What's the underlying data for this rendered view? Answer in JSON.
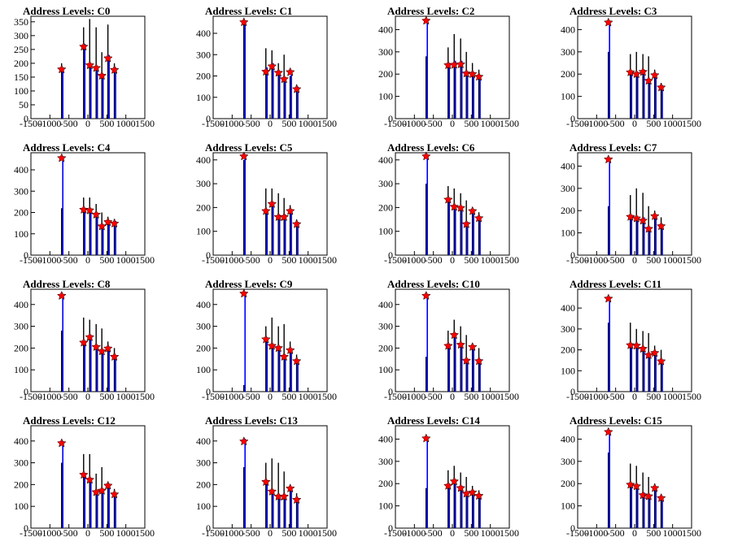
{
  "colors": {
    "black_series": "#000000",
    "blue_series": "#0000ff",
    "marker": "#ff0000",
    "marker_outline": "#000000",
    "axes": "#000000",
    "background": "#ffffff"
  },
  "marker_icon": "red-star",
  "chart_data": [
    {
      "type": "bar",
      "title": "Address Levels: C0",
      "xlim": [
        -1500,
        1500
      ],
      "ylim": [
        0,
        370
      ],
      "xticks": [
        "-1500",
        "-1000",
        "-500",
        "0",
        "500",
        "1000",
        "1500"
      ],
      "yticks": [
        "0",
        "50",
        "100",
        "150",
        "200",
        "250",
        "300",
        "350"
      ],
      "x": [
        -690,
        -110,
        50,
        220,
        370,
        530,
        700
      ],
      "black": [
        200,
        330,
        360,
        330,
        240,
        340,
        200
      ],
      "blue": [
        185,
        270,
        195,
        185,
        160,
        230,
        185
      ],
      "peaks": [
        {
          "x": -690,
          "y": 178
        },
        {
          "x": -110,
          "y": 260
        },
        {
          "x": 50,
          "y": 193
        },
        {
          "x": 220,
          "y": 183
        },
        {
          "x": 370,
          "y": 155
        },
        {
          "x": 530,
          "y": 218
        },
        {
          "x": 700,
          "y": 176
        }
      ]
    },
    {
      "type": "bar",
      "title": "Address Levels: C1",
      "xlim": [
        -1500,
        1500
      ],
      "ylim": [
        0,
        480
      ],
      "xticks": [
        "-1500",
        "-1000",
        "-500",
        "0",
        "500",
        "1000",
        "1500"
      ],
      "yticks": [
        "0",
        "100",
        "200",
        "300",
        "400"
      ],
      "x": [
        -690,
        -110,
        50,
        220,
        370,
        530,
        700
      ],
      "black": [
        450,
        330,
        320,
        260,
        300,
        200,
        160
      ],
      "blue": [
        460,
        240,
        260,
        220,
        190,
        220,
        150
      ],
      "peaks": [
        {
          "x": -690,
          "y": 452
        },
        {
          "x": -110,
          "y": 220
        },
        {
          "x": 50,
          "y": 245
        },
        {
          "x": 220,
          "y": 215
        },
        {
          "x": 370,
          "y": 185
        },
        {
          "x": 530,
          "y": 218
        },
        {
          "x": 700,
          "y": 138
        }
      ]
    },
    {
      "type": "bar",
      "title": "Address Levels: C2",
      "xlim": [
        -1500,
        1500
      ],
      "ylim": [
        0,
        460
      ],
      "xticks": [
        "-1500",
        "-1000",
        "-500",
        "0",
        "500",
        "1000",
        "1500"
      ],
      "yticks": [
        "0",
        "100",
        "200",
        "300",
        "400"
      ],
      "x": [
        -690,
        -110,
        50,
        220,
        370,
        530,
        700
      ],
      "black": [
        280,
        320,
        380,
        360,
        300,
        250,
        220
      ],
      "blue": [
        440,
        250,
        260,
        260,
        200,
        210,
        190
      ],
      "peaks": [
        {
          "x": -690,
          "y": 440
        },
        {
          "x": -110,
          "y": 240
        },
        {
          "x": 50,
          "y": 242
        },
        {
          "x": 220,
          "y": 244
        },
        {
          "x": 370,
          "y": 203
        },
        {
          "x": 530,
          "y": 200
        },
        {
          "x": 700,
          "y": 188
        }
      ]
    },
    {
      "type": "bar",
      "title": "Address Levels: C3",
      "xlim": [
        -1500,
        1500
      ],
      "ylim": [
        0,
        460
      ],
      "xticks": [
        "-1500",
        "-1000",
        "-500",
        "0",
        "500",
        "1000",
        "1500"
      ],
      "yticks": [
        "0",
        "100",
        "200",
        "300",
        "400"
      ],
      "x": [
        -690,
        -110,
        50,
        220,
        370,
        530,
        700
      ],
      "black": [
        300,
        290,
        300,
        290,
        280,
        220,
        160
      ],
      "blue": [
        440,
        210,
        210,
        220,
        170,
        200,
        150
      ],
      "peaks": [
        {
          "x": -690,
          "y": 432
        },
        {
          "x": -110,
          "y": 208
        },
        {
          "x": 50,
          "y": 200
        },
        {
          "x": 220,
          "y": 210
        },
        {
          "x": 370,
          "y": 170
        },
        {
          "x": 530,
          "y": 195
        },
        {
          "x": 700,
          "y": 140
        }
      ]
    },
    {
      "type": "bar",
      "title": "Address Levels: C4",
      "xlim": [
        -1500,
        1500
      ],
      "ylim": [
        0,
        480
      ],
      "xticks": [
        "-1500",
        "-1000",
        "-500",
        "0",
        "500",
        "1000",
        "1500"
      ],
      "yticks": [
        "0",
        "100",
        "200",
        "300",
        "400"
      ],
      "x": [
        -690,
        -110,
        50,
        220,
        370,
        530,
        700
      ],
      "black": [
        220,
        270,
        270,
        240,
        200,
        180,
        170
      ],
      "blue": [
        460,
        220,
        210,
        190,
        140,
        160,
        160
      ],
      "peaks": [
        {
          "x": -690,
          "y": 455
        },
        {
          "x": -110,
          "y": 213
        },
        {
          "x": 50,
          "y": 210
        },
        {
          "x": 220,
          "y": 190
        },
        {
          "x": 370,
          "y": 135
        },
        {
          "x": 530,
          "y": 155
        },
        {
          "x": 700,
          "y": 148
        }
      ]
    },
    {
      "type": "bar",
      "title": "Address Levels: C5",
      "xlim": [
        -1500,
        1500
      ],
      "ylim": [
        0,
        430
      ],
      "xticks": [
        "-1500",
        "-1000",
        "-500",
        "0",
        "500",
        "1000",
        "1500"
      ],
      "yticks": [
        "0",
        "100",
        "200",
        "300",
        "400"
      ],
      "x": [
        -690,
        -110,
        50,
        220,
        370,
        530,
        700
      ],
      "black": [
        400,
        280,
        280,
        260,
        240,
        210,
        150
      ],
      "blue": [
        420,
        190,
        220,
        170,
        170,
        190,
        140
      ],
      "peaks": [
        {
          "x": -690,
          "y": 415
        },
        {
          "x": -110,
          "y": 185
        },
        {
          "x": 50,
          "y": 215
        },
        {
          "x": 220,
          "y": 160
        },
        {
          "x": 370,
          "y": 160
        },
        {
          "x": 530,
          "y": 185
        },
        {
          "x": 700,
          "y": 130
        }
      ]
    },
    {
      "type": "bar",
      "title": "Address Levels: C6",
      "xlim": [
        -1500,
        1500
      ],
      "ylim": [
        0,
        430
      ],
      "xticks": [
        "-1500",
        "-1000",
        "-500",
        "0",
        "500",
        "1000",
        "1500"
      ],
      "yticks": [
        "0",
        "100",
        "200",
        "300",
        "400"
      ],
      "x": [
        -690,
        -110,
        50,
        220,
        370,
        530,
        700
      ],
      "black": [
        300,
        290,
        280,
        260,
        230,
        200,
        180
      ],
      "blue": [
        420,
        240,
        210,
        200,
        140,
        190,
        160
      ],
      "peaks": [
        {
          "x": -690,
          "y": 415
        },
        {
          "x": -110,
          "y": 233
        },
        {
          "x": 50,
          "y": 203
        },
        {
          "x": 220,
          "y": 198
        },
        {
          "x": 370,
          "y": 130
        },
        {
          "x": 530,
          "y": 185
        },
        {
          "x": 700,
          "y": 155
        }
      ]
    },
    {
      "type": "bar",
      "title": "Address Levels: C7",
      "xlim": [
        -1500,
        1500
      ],
      "ylim": [
        0,
        460
      ],
      "xticks": [
        "-1500",
        "-1000",
        "-500",
        "0",
        "500",
        "1000",
        "1500"
      ],
      "yticks": [
        "0",
        "100",
        "200",
        "300",
        "400"
      ],
      "x": [
        -690,
        -110,
        50,
        220,
        370,
        530,
        700
      ],
      "black": [
        220,
        270,
        300,
        280,
        220,
        200,
        170
      ],
      "blue": [
        430,
        180,
        170,
        170,
        120,
        180,
        140
      ],
      "peaks": [
        {
          "x": -690,
          "y": 430
        },
        {
          "x": -110,
          "y": 172
        },
        {
          "x": 50,
          "y": 165
        },
        {
          "x": 220,
          "y": 155
        },
        {
          "x": 370,
          "y": 118
        },
        {
          "x": 530,
          "y": 175
        },
        {
          "x": 700,
          "y": 130
        }
      ]
    },
    {
      "type": "bar",
      "title": "Address Levels: C8",
      "xlim": [
        -1500,
        1500
      ],
      "ylim": [
        0,
        470
      ],
      "xticks": [
        "-1500",
        "-1000",
        "-500",
        "0",
        "500",
        "1000",
        "1500"
      ],
      "yticks": [
        "0",
        "100",
        "200",
        "300",
        "400"
      ],
      "x": [
        -690,
        -110,
        50,
        220,
        370,
        530,
        700
      ],
      "black": [
        280,
        340,
        330,
        310,
        290,
        230,
        200
      ],
      "blue": [
        440,
        230,
        260,
        210,
        190,
        200,
        160
      ],
      "peaks": [
        {
          "x": -690,
          "y": 440
        },
        {
          "x": -110,
          "y": 225
        },
        {
          "x": 50,
          "y": 250
        },
        {
          "x": 220,
          "y": 205
        },
        {
          "x": 370,
          "y": 185
        },
        {
          "x": 530,
          "y": 198
        },
        {
          "x": 700,
          "y": 160
        }
      ]
    },
    {
      "type": "bar",
      "title": "Address Levels: C9",
      "xlim": [
        -1500,
        1500
      ],
      "ylim": [
        0,
        470
      ],
      "xticks": [
        "-1500",
        "-1000",
        "-500",
        "0",
        "500",
        "1000",
        "1500"
      ],
      "yticks": [
        "0",
        "100",
        "200",
        "300",
        "400"
      ],
      "x": [
        -690,
        -110,
        50,
        220,
        370,
        530,
        700
      ],
      "black": [
        30,
        300,
        340,
        300,
        310,
        230,
        170
      ],
      "blue": [
        450,
        240,
        210,
        200,
        160,
        190,
        140
      ],
      "peaks": [
        {
          "x": -690,
          "y": 450
        },
        {
          "x": -110,
          "y": 240
        },
        {
          "x": 50,
          "y": 210
        },
        {
          "x": 220,
          "y": 200
        },
        {
          "x": 370,
          "y": 160
        },
        {
          "x": 530,
          "y": 190
        },
        {
          "x": 700,
          "y": 140
        }
      ]
    },
    {
      "type": "bar",
      "title": "Address Levels: C10",
      "xlim": [
        -1500,
        1500
      ],
      "ylim": [
        0,
        470
      ],
      "xticks": [
        "-1500",
        "-1000",
        "-500",
        "0",
        "500",
        "1000",
        "1500"
      ],
      "yticks": [
        "0",
        "100",
        "200",
        "300",
        "400"
      ],
      "x": [
        -690,
        -110,
        50,
        220,
        370,
        530,
        700
      ],
      "black": [
        160,
        280,
        330,
        300,
        260,
        220,
        200
      ],
      "blue": [
        440,
        220,
        270,
        220,
        150,
        210,
        150
      ],
      "peaks": [
        {
          "x": -690,
          "y": 440
        },
        {
          "x": -110,
          "y": 210
        },
        {
          "x": 50,
          "y": 260
        },
        {
          "x": 220,
          "y": 215
        },
        {
          "x": 370,
          "y": 142
        },
        {
          "x": 530,
          "y": 205
        },
        {
          "x": 700,
          "y": 140
        }
      ]
    },
    {
      "type": "bar",
      "title": "Address Levels: C11",
      "xlim": [
        -1500,
        1500
      ],
      "ylim": [
        0,
        490
      ],
      "xticks": [
        "-1500",
        "-1000",
        "-500",
        "0",
        "500",
        "1000",
        "1500"
      ],
      "yticks": [
        "0",
        "100",
        "200",
        "300",
        "400"
      ],
      "x": [
        -690,
        -110,
        50,
        220,
        370,
        530,
        700
      ],
      "black": [
        330,
        330,
        300,
        290,
        280,
        220,
        200
      ],
      "blue": [
        450,
        230,
        220,
        210,
        180,
        190,
        150
      ],
      "peaks": [
        {
          "x": -690,
          "y": 445
        },
        {
          "x": -110,
          "y": 222
        },
        {
          "x": 50,
          "y": 220
        },
        {
          "x": 220,
          "y": 205
        },
        {
          "x": 370,
          "y": 175
        },
        {
          "x": 530,
          "y": 185
        },
        {
          "x": 700,
          "y": 145
        }
      ]
    },
    {
      "type": "bar",
      "title": "Address Levels: C12",
      "xlim": [
        -1500,
        1500
      ],
      "ylim": [
        0,
        470
      ],
      "xticks": [
        "-1500",
        "-1000",
        "-500",
        "0",
        "500",
        "1000",
        "1500"
      ],
      "yticks": [
        "0",
        "100",
        "200",
        "300",
        "400"
      ],
      "x": [
        -690,
        -110,
        50,
        220,
        370,
        530,
        700
      ],
      "black": [
        300,
        340,
        340,
        250,
        280,
        200,
        180
      ],
      "blue": [
        400,
        250,
        230,
        170,
        180,
        200,
        160
      ],
      "peaks": [
        {
          "x": -690,
          "y": 390
        },
        {
          "x": -110,
          "y": 245
        },
        {
          "x": 50,
          "y": 222
        },
        {
          "x": 220,
          "y": 165
        },
        {
          "x": 370,
          "y": 172
        },
        {
          "x": 530,
          "y": 195
        },
        {
          "x": 700,
          "y": 155
        }
      ]
    },
    {
      "type": "bar",
      "title": "Address Levels: C13",
      "xlim": [
        -1500,
        1500
      ],
      "ylim": [
        0,
        470
      ],
      "xticks": [
        "-1500",
        "-1000",
        "-500",
        "0",
        "500",
        "1000",
        "1500"
      ],
      "yticks": [
        "0",
        "100",
        "200",
        "300",
        "400"
      ],
      "x": [
        -690,
        -110,
        50,
        220,
        370,
        530,
        700
      ],
      "black": [
        280,
        300,
        320,
        300,
        260,
        190,
        160
      ],
      "blue": [
        410,
        220,
        170,
        150,
        150,
        190,
        140
      ],
      "peaks": [
        {
          "x": -690,
          "y": 398
        },
        {
          "x": -110,
          "y": 212
        },
        {
          "x": 50,
          "y": 168
        },
        {
          "x": 220,
          "y": 145
        },
        {
          "x": 370,
          "y": 145
        },
        {
          "x": 530,
          "y": 182
        },
        {
          "x": 700,
          "y": 130
        }
      ]
    },
    {
      "type": "bar",
      "title": "Address Levels: C14",
      "xlim": [
        -1500,
        1500
      ],
      "ylim": [
        0,
        460
      ],
      "xticks": [
        "-1500",
        "-1000",
        "-500",
        "0",
        "500",
        "1000",
        "1500"
      ],
      "yticks": [
        "0",
        "100",
        "200",
        "300",
        "400"
      ],
      "x": [
        -690,
        -110,
        50,
        220,
        370,
        530,
        700
      ],
      "black": [
        180,
        260,
        280,
        250,
        230,
        190,
        170
      ],
      "blue": [
        410,
        200,
        210,
        190,
        160,
        170,
        150
      ],
      "peaks": [
        {
          "x": -690,
          "y": 403
        },
        {
          "x": -110,
          "y": 190
        },
        {
          "x": 50,
          "y": 210
        },
        {
          "x": 220,
          "y": 180
        },
        {
          "x": 370,
          "y": 155
        },
        {
          "x": 530,
          "y": 160
        },
        {
          "x": 700,
          "y": 145
        }
      ]
    },
    {
      "type": "bar",
      "title": "Address Levels: C15",
      "xlim": [
        -1500,
        1500
      ],
      "ylim": [
        0,
        460
      ],
      "xticks": [
        "-1500",
        "-1000",
        "-500",
        "0",
        "500",
        "1000",
        "1500"
      ],
      "yticks": [
        "0",
        "100",
        "200",
        "300",
        "400"
      ],
      "x": [
        -690,
        -110,
        50,
        220,
        370,
        530,
        700
      ],
      "black": [
        340,
        290,
        280,
        250,
        230,
        200,
        150
      ],
      "blue": [
        440,
        200,
        190,
        160,
        150,
        180,
        140
      ],
      "peaks": [
        {
          "x": -690,
          "y": 432
        },
        {
          "x": -110,
          "y": 195
        },
        {
          "x": 50,
          "y": 188
        },
        {
          "x": 220,
          "y": 148
        },
        {
          "x": 370,
          "y": 143
        },
        {
          "x": 530,
          "y": 180
        },
        {
          "x": 700,
          "y": 135
        }
      ]
    }
  ]
}
